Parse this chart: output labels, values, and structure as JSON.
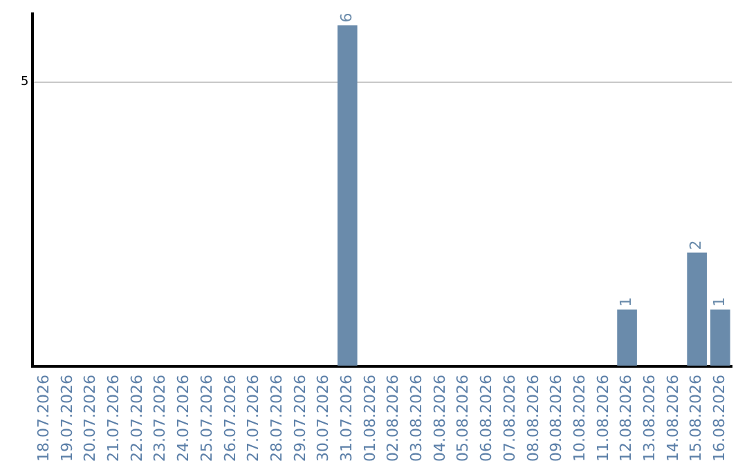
{
  "chart_data": {
    "type": "bar",
    "categories": [
      "18.07.2026",
      "19.07.2026",
      "20.07.2026",
      "21.07.2026",
      "22.07.2026",
      "23.07.2026",
      "24.07.2026",
      "25.07.2026",
      "26.07.2026",
      "27.07.2026",
      "28.07.2026",
      "29.07.2026",
      "30.07.2026",
      "31.07.2026",
      "01.08.2026",
      "02.08.2026",
      "03.08.2026",
      "04.08.2026",
      "05.08.2026",
      "06.08.2026",
      "07.08.2026",
      "08.08.2026",
      "09.08.2026",
      "10.08.2026",
      "11.08.2026",
      "12.08.2026",
      "13.08.2026",
      "14.08.2026",
      "15.08.2026",
      "16.08.2026"
    ],
    "values": [
      null,
      null,
      null,
      null,
      null,
      null,
      null,
      null,
      null,
      null,
      null,
      null,
      null,
      6,
      null,
      null,
      null,
      null,
      null,
      null,
      null,
      null,
      null,
      null,
      null,
      1,
      null,
      null,
      2,
      1
    ],
    "data_labels": true,
    "color": "#6a8bab",
    "ylim": [
      0,
      6.2
    ],
    "yticks": [
      {
        "value": 0,
        "label": null
      },
      5
    ],
    "grid": "y",
    "legend": false
  }
}
